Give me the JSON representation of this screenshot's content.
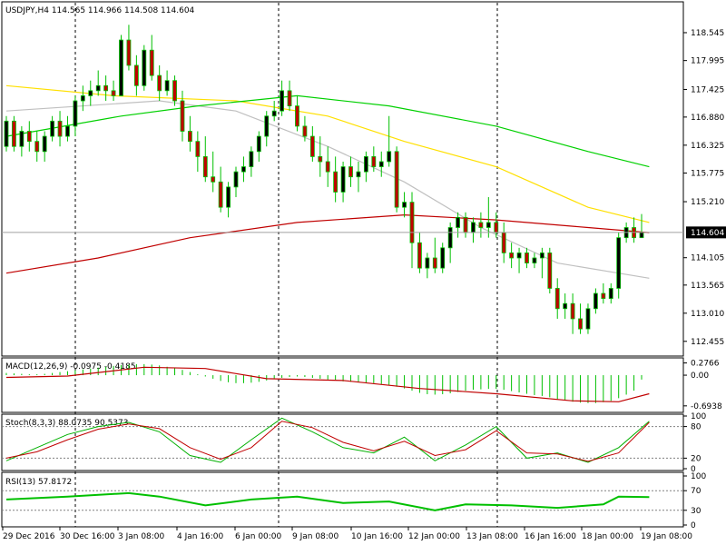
{
  "chart_data": {
    "type": "candlestick",
    "symbol_header": "USDJPY,H4  114.565 114.966 114.508 114.604",
    "last_price_label": "114.604",
    "price_axis": {
      "ylim": [
        112.2,
        119.1
      ],
      "ticks": [
        "118.545",
        "117.995",
        "117.425",
        "116.880",
        "116.325",
        "115.775",
        "115.210",
        "114.105",
        "113.565",
        "113.010",
        "112.455"
      ]
    },
    "time_axis": {
      "labels": [
        "29 Dec 2016",
        "30 Dec 16:00",
        "3 Jan 08:00",
        "4 Jan 16:00",
        "6 Jan 00:00",
        "9 Jan 08:00",
        "10 Jan 16:00",
        "12 Jan 00:00",
        "13 Jan 08:00",
        "16 Jan 16:00",
        "18 Jan 00:00",
        "19 Jan 08:00"
      ]
    },
    "separators": [
      "30 Dec 2016",
      "6 Jan 2017",
      "13 Jan 2017"
    ],
    "current_price": 114.604,
    "candles": [
      [
        116.3,
        116.9,
        116.2,
        116.8
      ],
      [
        116.8,
        116.9,
        116.2,
        116.3
      ],
      [
        116.3,
        116.7,
        116.1,
        116.6
      ],
      [
        116.6,
        116.8,
        116.2,
        116.4
      ],
      [
        116.4,
        116.6,
        116.0,
        116.2
      ],
      [
        116.2,
        116.6,
        116.0,
        116.5
      ],
      [
        116.5,
        116.9,
        116.4,
        116.8
      ],
      [
        116.8,
        117.0,
        116.3,
        116.5
      ],
      [
        116.5,
        116.9,
        116.4,
        116.7
      ],
      [
        116.7,
        117.3,
        116.5,
        117.2
      ],
      [
        117.2,
        117.5,
        117.0,
        117.3
      ],
      [
        117.3,
        117.6,
        117.1,
        117.4
      ],
      [
        117.4,
        117.8,
        117.3,
        117.5
      ],
      [
        117.5,
        117.7,
        117.2,
        117.4
      ],
      [
        117.4,
        117.6,
        117.2,
        117.3
      ],
      [
        117.3,
        118.5,
        117.3,
        118.4
      ],
      [
        118.4,
        118.7,
        117.8,
        117.9
      ],
      [
        117.9,
        118.1,
        117.3,
        117.5
      ],
      [
        117.5,
        118.3,
        117.4,
        118.2
      ],
      [
        118.2,
        118.5,
        117.6,
        117.7
      ],
      [
        117.7,
        117.9,
        117.2,
        117.4
      ],
      [
        117.4,
        117.8,
        117.3,
        117.6
      ],
      [
        117.6,
        117.7,
        117.1,
        117.2
      ],
      [
        117.2,
        117.4,
        116.4,
        116.6
      ],
      [
        116.6,
        116.9,
        116.2,
        116.4
      ],
      [
        116.4,
        116.6,
        115.8,
        116.1
      ],
      [
        116.1,
        116.5,
        115.6,
        115.7
      ],
      [
        115.7,
        116.2,
        115.4,
        115.6
      ],
      [
        115.6,
        115.9,
        115.0,
        115.1
      ],
      [
        115.1,
        115.6,
        114.9,
        115.5
      ],
      [
        115.5,
        115.9,
        115.3,
        115.8
      ],
      [
        115.8,
        116.1,
        115.6,
        115.9
      ],
      [
        115.9,
        116.3,
        115.7,
        116.2
      ],
      [
        116.2,
        116.6,
        116.0,
        116.5
      ],
      [
        116.5,
        117.0,
        116.3,
        116.9
      ],
      [
        116.9,
        117.2,
        116.8,
        117.0
      ],
      [
        117.0,
        117.6,
        116.9,
        117.4
      ],
      [
        117.4,
        117.6,
        117.0,
        117.1
      ],
      [
        117.1,
        117.3,
        116.6,
        116.7
      ],
      [
        116.7,
        116.9,
        116.4,
        116.5
      ],
      [
        116.5,
        116.7,
        116.0,
        116.1
      ],
      [
        116.1,
        116.5,
        115.7,
        116.0
      ],
      [
        116.0,
        116.3,
        115.5,
        115.8
      ],
      [
        115.8,
        116.1,
        115.2,
        115.4
      ],
      [
        115.4,
        116.0,
        115.2,
        115.9
      ],
      [
        115.9,
        116.1,
        115.5,
        115.7
      ],
      [
        115.7,
        116.0,
        115.4,
        115.8
      ],
      [
        115.8,
        116.2,
        115.6,
        116.1
      ],
      [
        116.1,
        116.3,
        115.8,
        115.9
      ],
      [
        115.9,
        116.2,
        115.7,
        116.0
      ],
      [
        116.0,
        116.9,
        115.9,
        116.2
      ],
      [
        116.2,
        116.3,
        115.0,
        115.1
      ],
      [
        115.1,
        115.4,
        114.9,
        115.2
      ],
      [
        115.2,
        115.4,
        113.9,
        114.4
      ],
      [
        114.4,
        114.6,
        113.8,
        113.9
      ],
      [
        113.9,
        114.2,
        113.7,
        114.1
      ],
      [
        114.1,
        114.5,
        113.8,
        113.9
      ],
      [
        113.9,
        114.4,
        113.8,
        114.3
      ],
      [
        114.3,
        114.8,
        114.0,
        114.7
      ],
      [
        114.7,
        115.0,
        114.5,
        114.9
      ],
      [
        114.9,
        115.0,
        114.5,
        114.6
      ],
      [
        114.6,
        114.9,
        114.4,
        114.8
      ],
      [
        114.8,
        115.0,
        114.5,
        114.7
      ],
      [
        114.7,
        115.3,
        114.5,
        114.8
      ],
      [
        114.8,
        115.0,
        114.5,
        114.6
      ],
      [
        114.6,
        114.8,
        114.0,
        114.2
      ],
      [
        114.2,
        114.4,
        113.9,
        114.1
      ],
      [
        114.1,
        114.3,
        113.8,
        114.2
      ],
      [
        114.2,
        114.3,
        113.9,
        114.0
      ],
      [
        114.0,
        114.2,
        113.9,
        114.1
      ],
      [
        114.1,
        114.3,
        113.7,
        114.2
      ],
      [
        114.2,
        114.3,
        113.4,
        113.5
      ],
      [
        113.5,
        113.7,
        112.9,
        113.1
      ],
      [
        113.1,
        113.4,
        112.9,
        113.2
      ],
      [
        113.2,
        113.4,
        112.6,
        112.9
      ],
      [
        112.9,
        113.2,
        112.6,
        112.7
      ],
      [
        112.7,
        113.2,
        112.6,
        113.1
      ],
      [
        113.1,
        113.5,
        113.0,
        113.4
      ],
      [
        113.4,
        113.6,
        113.2,
        113.3
      ],
      [
        113.3,
        113.6,
        113.2,
        113.5
      ],
      [
        113.5,
        114.6,
        113.3,
        114.5
      ],
      [
        114.5,
        114.8,
        114.4,
        114.7
      ],
      [
        114.7,
        114.9,
        114.4,
        114.5
      ],
      [
        114.5,
        114.966,
        114.508,
        114.604
      ]
    ],
    "moving_averages": [
      {
        "color": "#ffe000",
        "values": [
          [
            0,
            117.5
          ],
          [
            14,
            117.3
          ],
          [
            30,
            117.2
          ],
          [
            42,
            116.9
          ],
          [
            52,
            116.4
          ],
          [
            64,
            115.9
          ],
          [
            76,
            115.1
          ],
          [
            84,
            114.8
          ]
        ]
      },
      {
        "color": "#c0c0c0",
        "values": [
          [
            0,
            117.0
          ],
          [
            20,
            117.2
          ],
          [
            30,
            117.0
          ],
          [
            42,
            116.3
          ],
          [
            52,
            115.6
          ],
          [
            62,
            114.7
          ],
          [
            72,
            114.0
          ],
          [
            84,
            113.7
          ]
        ]
      },
      {
        "color": "#00d000",
        "values": [
          [
            0,
            116.5
          ],
          [
            15,
            116.9
          ],
          [
            25,
            117.1
          ],
          [
            38,
            117.3
          ],
          [
            50,
            117.1
          ],
          [
            64,
            116.7
          ],
          [
            76,
            116.2
          ],
          [
            84,
            115.9
          ]
        ]
      },
      {
        "color": "#c00000",
        "values": [
          [
            0,
            113.8
          ],
          [
            12,
            114.1
          ],
          [
            24,
            114.5
          ],
          [
            38,
            114.8
          ],
          [
            52,
            114.95
          ],
          [
            64,
            114.85
          ],
          [
            76,
            114.7
          ],
          [
            84,
            114.6
          ]
        ]
      }
    ],
    "macd": {
      "label": "MACD(12,26,9) -0.0975 -0.4185",
      "ticks": [
        "0.2766",
        "0.00",
        "-0.6938"
      ],
      "ylim": [
        -0.8,
        0.35
      ],
      "hist": [
        0.05,
        0.04,
        0.03,
        0.02,
        0.02,
        0.03,
        0.05,
        0.07,
        0.09,
        0.11,
        0.13,
        0.15,
        0.17,
        0.19,
        0.21,
        0.23,
        0.24,
        0.25,
        0.25,
        0.24,
        0.22,
        0.19,
        0.16,
        0.12,
        0.07,
        0.02,
        -0.03,
        -0.08,
        -0.13,
        -0.16,
        -0.18,
        -0.18,
        -0.17,
        -0.15,
        -0.12,
        -0.09,
        -0.06,
        -0.04,
        -0.03,
        -0.04,
        -0.06,
        -0.08,
        -0.1,
        -0.12,
        -0.14,
        -0.15,
        -0.16,
        -0.17,
        -0.18,
        -0.2,
        -0.22,
        -0.26,
        -0.3,
        -0.35,
        -0.4,
        -0.43,
        -0.44,
        -0.43,
        -0.41,
        -0.38,
        -0.35,
        -0.33,
        -0.32,
        -0.31,
        -0.31,
        -0.33,
        -0.36,
        -0.39,
        -0.42,
        -0.45,
        -0.47,
        -0.5,
        -0.54,
        -0.57,
        -0.6,
        -0.62,
        -0.63,
        -0.63,
        -0.61,
        -0.58,
        -0.52,
        -0.44,
        -0.35,
        -0.1
      ],
      "signal": [
        [
          0,
          -0.05
        ],
        [
          8,
          -0.02
        ],
        [
          18,
          0.18
        ],
        [
          26,
          0.15
        ],
        [
          34,
          -0.08
        ],
        [
          44,
          -0.12
        ],
        [
          54,
          -0.3
        ],
        [
          64,
          -0.42
        ],
        [
          74,
          -0.58
        ],
        [
          80,
          -0.6
        ],
        [
          84,
          -0.42
        ]
      ]
    },
    "stochastic": {
      "label": "Stoch(8,3,3) 88.0735 90.5373",
      "ticks": [
        "100",
        "80",
        "20",
        "0"
      ],
      "main": [
        [
          0,
          15
        ],
        [
          4,
          40
        ],
        [
          8,
          65
        ],
        [
          12,
          80
        ],
        [
          16,
          88
        ],
        [
          20,
          70
        ],
        [
          24,
          25
        ],
        [
          28,
          12
        ],
        [
          32,
          55
        ],
        [
          36,
          96
        ],
        [
          40,
          70
        ],
        [
          44,
          40
        ],
        [
          48,
          30
        ],
        [
          52,
          60
        ],
        [
          56,
          15
        ],
        [
          60,
          45
        ],
        [
          64,
          80
        ],
        [
          68,
          20
        ],
        [
          72,
          30
        ],
        [
          76,
          12
        ],
        [
          80,
          40
        ],
        [
          84,
          90
        ]
      ],
      "signal": [
        [
          0,
          20
        ],
        [
          4,
          32
        ],
        [
          8,
          55
        ],
        [
          12,
          75
        ],
        [
          16,
          85
        ],
        [
          20,
          76
        ],
        [
          24,
          40
        ],
        [
          28,
          18
        ],
        [
          32,
          40
        ],
        [
          36,
          90
        ],
        [
          40,
          78
        ],
        [
          44,
          50
        ],
        [
          48,
          34
        ],
        [
          52,
          52
        ],
        [
          56,
          25
        ],
        [
          60,
          36
        ],
        [
          64,
          72
        ],
        [
          68,
          30
        ],
        [
          72,
          28
        ],
        [
          76,
          14
        ],
        [
          80,
          30
        ],
        [
          84,
          88
        ]
      ]
    },
    "rsi": {
      "label": "RSI(13) 57.8172",
      "ticks": [
        "100",
        "70",
        "30",
        "0"
      ],
      "values": [
        [
          0,
          52
        ],
        [
          8,
          58
        ],
        [
          16,
          65
        ],
        [
          20,
          58
        ],
        [
          26,
          40
        ],
        [
          32,
          52
        ],
        [
          38,
          58
        ],
        [
          44,
          45
        ],
        [
          50,
          48
        ],
        [
          56,
          30
        ],
        [
          60,
          42
        ],
        [
          66,
          40
        ],
        [
          72,
          35
        ],
        [
          78,
          42
        ],
        [
          80,
          58
        ],
        [
          84,
          57
        ]
      ]
    }
  }
}
